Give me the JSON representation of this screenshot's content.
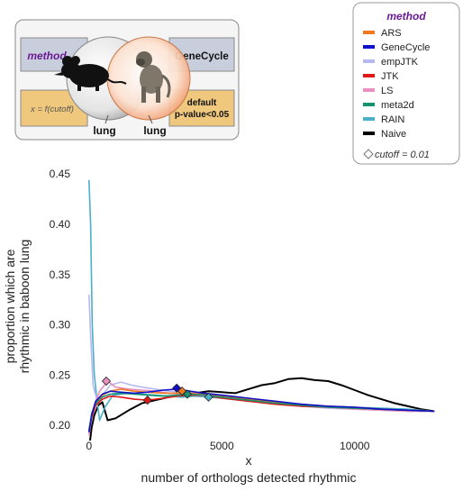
{
  "schematic": {
    "left_box_label": "method",
    "right_box_label": "GeneCycle",
    "formula_label": "x = f(cutoff)",
    "criteria_line1": "default",
    "criteria_line2": "p-value<0.05",
    "left_tissue_label": "lung",
    "right_tissue_label": "lung",
    "mouse_icon": "mouse-silhouette-icon",
    "baboon_icon": "baboon-photo-icon"
  },
  "legend": {
    "title": "method",
    "items": [
      {
        "label": "ARS",
        "color": "#f07820"
      },
      {
        "label": "GeneCycle",
        "color": "#1010c8"
      },
      {
        "label": "empJTK",
        "color": "#b8b8f0"
      },
      {
        "label": "JTK",
        "color": "#e01818"
      },
      {
        "label": "LS",
        "color": "#e890c0"
      },
      {
        "label": "meta2d",
        "color": "#14936e"
      },
      {
        "label": "RAIN",
        "color": "#4ab0c8"
      },
      {
        "label": "Naive",
        "color": "#000000"
      }
    ],
    "cutoff_label": "cutoff = 0.01",
    "cutoff_icon": "diamond-icon"
  },
  "chart_data": {
    "type": "line",
    "xlabel": "x",
    "xlabel_sub": "number of orthologs detected rhythmic",
    "ylabel_line1": "proportion which are",
    "ylabel_line2": "rhythmic in baboon lung",
    "xlim": [
      -300,
      13500
    ],
    "ylim": [
      0.192,
      0.452
    ],
    "x_ticks": [
      0,
      5000,
      10000
    ],
    "x_tick_labels": [
      "0",
      "5000",
      "10000"
    ],
    "y_ticks": [
      0.2,
      0.25,
      0.3,
      0.35,
      0.4,
      0.45
    ],
    "y_tick_labels": [
      "0.20",
      "0.25",
      "0.30",
      "0.35",
      "0.40",
      "0.45"
    ],
    "grid": false,
    "series": [
      {
        "name": "Naive",
        "color": "#000000",
        "x": [
          0,
          100,
          200,
          350,
          500,
          700,
          1000,
          1500,
          2000,
          2500,
          3000,
          3500,
          4000,
          4500,
          5000,
          5500,
          6000,
          6500,
          7000,
          7500,
          8000,
          8500,
          9000,
          9500,
          10000,
          10500,
          11000,
          11500,
          12000,
          12500,
          13000
        ],
        "y": [
          0.176,
          0.198,
          0.21,
          0.22,
          0.223,
          0.205,
          0.207,
          0.215,
          0.222,
          0.225,
          0.228,
          0.23,
          0.232,
          0.234,
          0.233,
          0.232,
          0.236,
          0.24,
          0.242,
          0.246,
          0.247,
          0.245,
          0.244,
          0.24,
          0.235,
          0.23,
          0.226,
          0.222,
          0.219,
          0.216,
          0.214
        ]
      },
      {
        "name": "RAIN",
        "color": "#4ab0c8",
        "x": [
          0,
          60,
          120,
          200,
          300,
          400,
          600,
          900,
          1500,
          2000,
          2500,
          3000,
          3500,
          4000,
          4500,
          5000,
          6000,
          7000,
          8000,
          9000,
          10000,
          11000,
          12000,
          13000
        ],
        "y": [
          0.444,
          0.4,
          0.3,
          0.25,
          0.225,
          0.205,
          0.218,
          0.23,
          0.232,
          0.231,
          0.23,
          0.229,
          0.228,
          0.229,
          0.228,
          0.227,
          0.224,
          0.222,
          0.22,
          0.219,
          0.218,
          0.217,
          0.216,
          0.214
        ]
      },
      {
        "name": "empJTK",
        "color": "#b8b8f0",
        "x": [
          0,
          60,
          150,
          300,
          500,
          800,
          1200,
          1600,
          2000,
          2500,
          3000,
          3500,
          4000,
          5000,
          6000,
          7000,
          8000,
          9000,
          10000,
          11000,
          12000,
          13000
        ],
        "y": [
          0.33,
          0.29,
          0.24,
          0.225,
          0.23,
          0.24,
          0.243,
          0.24,
          0.238,
          0.236,
          0.234,
          0.233,
          0.232,
          0.23,
          0.226,
          0.222,
          0.219,
          0.217,
          0.216,
          0.215,
          0.214,
          0.214
        ]
      },
      {
        "name": "LS",
        "color": "#e890c0",
        "x": [
          0,
          80,
          200,
          400,
          700,
          1000,
          1500,
          2000,
          2500,
          3000,
          3500,
          4000,
          5000,
          6000,
          7000,
          8000,
          9000,
          10000,
          11000,
          12000,
          13000
        ],
        "y": [
          0.19,
          0.205,
          0.22,
          0.234,
          0.244,
          0.238,
          0.236,
          0.235,
          0.234,
          0.232,
          0.231,
          0.23,
          0.228,
          0.226,
          0.223,
          0.22,
          0.218,
          0.216,
          0.215,
          0.214,
          0.214
        ]
      },
      {
        "name": "ARS",
        "color": "#f07820",
        "x": [
          0,
          100,
          250,
          500,
          800,
          1200,
          1700,
          2200,
          2800,
          3300,
          3800,
          4300,
          5000,
          6000,
          7000,
          8000,
          9000,
          10000,
          11000,
          12000,
          13000
        ],
        "y": [
          0.196,
          0.21,
          0.222,
          0.23,
          0.234,
          0.236,
          0.234,
          0.233,
          0.232,
          0.232,
          0.232,
          0.231,
          0.229,
          0.226,
          0.223,
          0.221,
          0.219,
          0.218,
          0.216,
          0.215,
          0.214
        ]
      },
      {
        "name": "JTK",
        "color": "#e01818",
        "x": [
          0,
          100,
          250,
          500,
          800,
          1200,
          1700,
          2200,
          2800,
          3300,
          3800,
          4300,
          5000,
          6000,
          7000,
          8000,
          9000,
          10000,
          11000,
          12000,
          13000
        ],
        "y": [
          0.194,
          0.208,
          0.22,
          0.226,
          0.229,
          0.228,
          0.226,
          0.225,
          0.227,
          0.229,
          0.23,
          0.23,
          0.227,
          0.224,
          0.221,
          0.219,
          0.218,
          0.217,
          0.216,
          0.215,
          0.214
        ]
      },
      {
        "name": "meta2d",
        "color": "#14936e",
        "x": [
          0,
          100,
          250,
          500,
          800,
          1200,
          1700,
          2200,
          2800,
          3300,
          3800,
          4300,
          5000,
          6000,
          7000,
          8000,
          9000,
          10000,
          11000,
          12000,
          13000
        ],
        "y": [
          0.195,
          0.212,
          0.222,
          0.228,
          0.231,
          0.232,
          0.231,
          0.23,
          0.229,
          0.23,
          0.231,
          0.23,
          0.228,
          0.225,
          0.222,
          0.22,
          0.218,
          0.217,
          0.216,
          0.215,
          0.214
        ]
      },
      {
        "name": "GeneCycle",
        "color": "#1010c8",
        "x": [
          0,
          100,
          250,
          500,
          800,
          1200,
          1700,
          2200,
          2800,
          3300,
          3800,
          4300,
          5000,
          6000,
          7000,
          8000,
          9000,
          10000,
          11000,
          12000,
          13000
        ],
        "y": [
          0.193,
          0.21,
          0.224,
          0.231,
          0.234,
          0.233,
          0.232,
          0.233,
          0.235,
          0.236,
          0.234,
          0.232,
          0.23,
          0.227,
          0.224,
          0.221,
          0.219,
          0.218,
          0.216,
          0.215,
          0.214
        ]
      }
    ],
    "cutoff_points": [
      {
        "method": "LS",
        "x": 650,
        "y": 0.244,
        "color": "#e890c0"
      },
      {
        "method": "JTK",
        "x": 2200,
        "y": 0.225,
        "color": "#e01818"
      },
      {
        "method": "GeneCycle",
        "x": 3300,
        "y": 0.237,
        "color": "#1010c8"
      },
      {
        "method": "ARS",
        "x": 3500,
        "y": 0.234,
        "color": "#f07820"
      },
      {
        "method": "meta2d",
        "x": 3700,
        "y": 0.231,
        "color": "#14936e"
      },
      {
        "method": "RAIN",
        "x": 4500,
        "y": 0.228,
        "color": "#4ab0c8"
      }
    ]
  }
}
